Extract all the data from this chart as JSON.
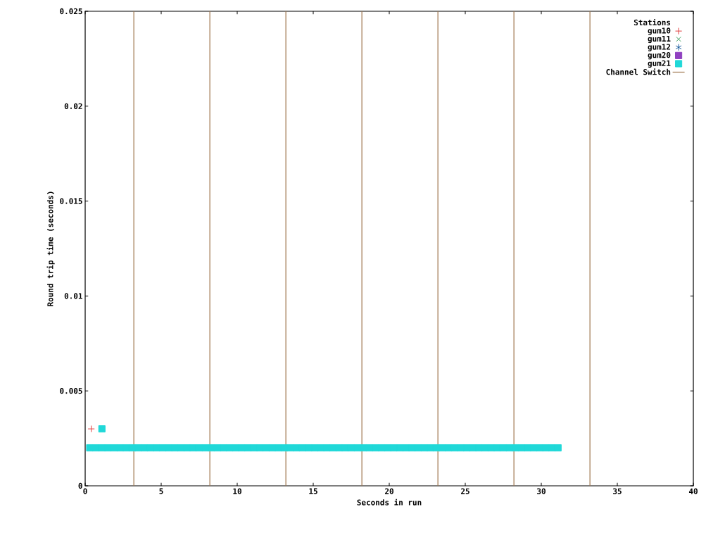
{
  "chart_data": {
    "type": "scatter",
    "xlabel": "Seconds in run",
    "ylabel": "Round trip time (seconds)",
    "legend_title": "Stations",
    "xlim": [
      0,
      40
    ],
    "xticks": [
      0,
      5,
      10,
      15,
      20,
      25,
      30,
      35,
      40
    ],
    "ylim": [
      0,
      0.025
    ],
    "yticks": [
      0,
      0.005,
      0.01,
      0.015,
      0.02,
      0.025
    ],
    "grid": false,
    "legend": "top right",
    "series": [
      {
        "name": "gum10",
        "color": "#e04040",
        "marker": "plus",
        "x": [
          0.4
        ],
        "values": [
          0.003
        ]
      },
      {
        "name": "gum11",
        "color": "#40a060",
        "marker": "cross"
      },
      {
        "name": "gum12",
        "color": "#2060a0",
        "marker": "star"
      },
      {
        "name": "gum20",
        "color": "#9040c0",
        "marker": "square"
      },
      {
        "name": "gum21",
        "color": "#20d8d8",
        "marker": "square",
        "x": [
          1.1,
          0.3,
          0.7,
          1.1,
          1.5,
          1.9,
          2.3,
          2.7,
          3.1,
          3.5,
          3.9,
          4.3,
          4.7,
          5.1,
          5.5,
          5.9,
          6.3,
          6.7,
          7.1,
          7.5,
          7.9,
          8.3,
          8.7,
          9.1,
          9.5,
          9.9,
          10.3,
          10.7,
          11.1,
          11.5,
          11.9,
          12.3,
          12.7,
          13.1,
          13.5,
          13.9,
          14.3,
          14.7,
          15.1,
          15.5,
          15.9,
          16.3,
          16.7,
          17.1,
          17.5,
          17.9,
          18.3,
          18.7,
          19.1,
          19.5,
          19.9,
          20.3,
          20.7,
          21.1,
          21.5,
          21.9,
          22.3,
          22.7,
          23.1,
          23.5,
          23.9,
          24.3,
          24.7,
          25.1,
          25.5,
          25.9,
          26.3,
          26.7,
          27.1,
          27.5,
          27.9,
          28.3,
          28.7,
          29.1,
          29.5,
          29.9,
          30.3,
          30.7,
          31.1
        ],
        "values": [
          0.003,
          0.002,
          0.002,
          0.002,
          0.002,
          0.002,
          0.002,
          0.002,
          0.002,
          0.002,
          0.002,
          0.002,
          0.002,
          0.002,
          0.002,
          0.002,
          0.002,
          0.002,
          0.002,
          0.002,
          0.002,
          0.002,
          0.002,
          0.002,
          0.002,
          0.002,
          0.002,
          0.002,
          0.002,
          0.002,
          0.002,
          0.002,
          0.002,
          0.002,
          0.002,
          0.002,
          0.002,
          0.002,
          0.002,
          0.002,
          0.002,
          0.002,
          0.002,
          0.002,
          0.002,
          0.002,
          0.002,
          0.002,
          0.002,
          0.002,
          0.002,
          0.002,
          0.002,
          0.002,
          0.002,
          0.002,
          0.002,
          0.002,
          0.002,
          0.002,
          0.002,
          0.002,
          0.002,
          0.002,
          0.002,
          0.002,
          0.002,
          0.002,
          0.002,
          0.002,
          0.002,
          0.002,
          0.002,
          0.002,
          0.002,
          0.002,
          0.002,
          0.002,
          0.002
        ]
      },
      {
        "name": "Channel Switch",
        "type": "line",
        "line_style": "solid",
        "color": "#a07850",
        "x": [
          3.2,
          3.2,
          null,
          8.2,
          8.2,
          null,
          13.2,
          13.2,
          null,
          18.2,
          18.2,
          null,
          23.2,
          23.2,
          null,
          28.2,
          28.2,
          null,
          33.2,
          33.2
        ],
        "values": [
          0,
          0.025,
          null,
          0,
          0.025,
          null,
          0,
          0.025,
          null,
          0,
          0.025,
          null,
          0,
          0.025,
          null,
          0,
          0.025,
          null,
          0,
          0.025
        ]
      }
    ]
  }
}
